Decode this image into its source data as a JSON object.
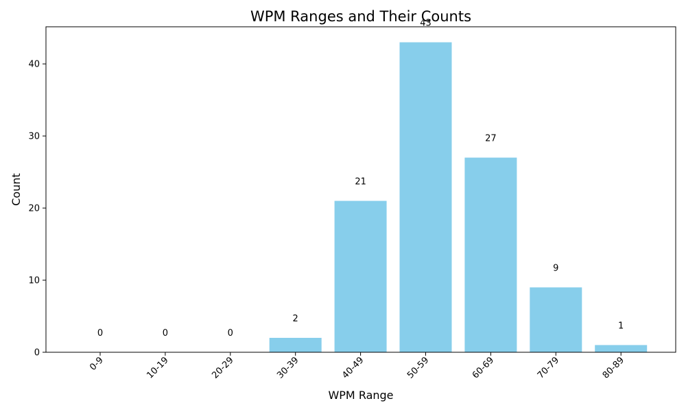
{
  "chart_data": {
    "type": "bar",
    "title": "WPM Ranges and Their Counts",
    "xlabel": "WPM Range",
    "ylabel": "Count",
    "categories": [
      "0-9",
      "10-19",
      "20-29",
      "30-39",
      "40-49",
      "50-59",
      "60-69",
      "70-79",
      "80-89"
    ],
    "values": [
      0,
      0,
      0,
      2,
      21,
      43,
      27,
      9,
      1
    ],
    "data_labels": [
      "0",
      "0",
      "0",
      "2",
      "21",
      "43",
      "27",
      "9",
      "1"
    ],
    "y_ticks": [
      0,
      10,
      20,
      30,
      40
    ],
    "y_tick_labels": [
      "0",
      "10",
      "20",
      "30",
      "40"
    ],
    "ylim": [
      0,
      45.15
    ],
    "grid": false,
    "bar_color": "#87ceeb",
    "axis_color": "#000000"
  }
}
